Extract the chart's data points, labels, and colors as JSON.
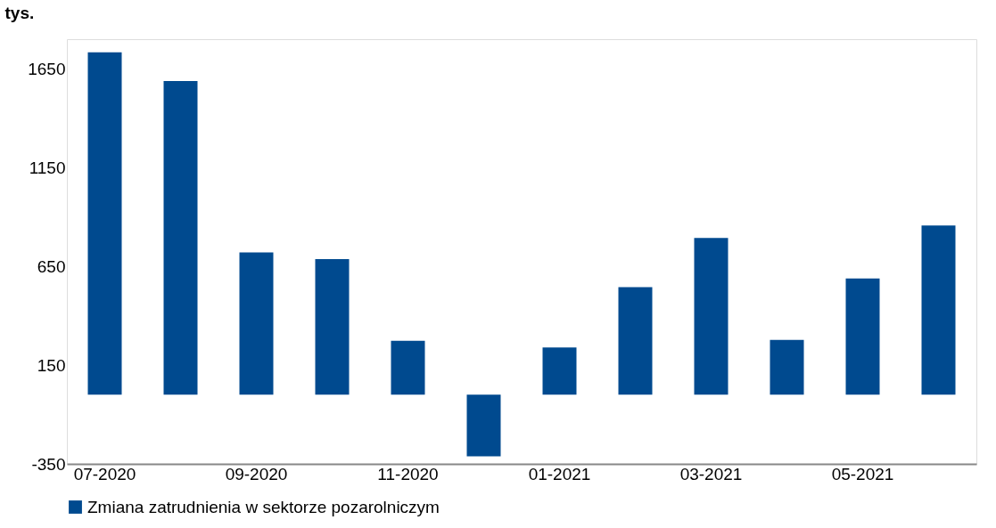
{
  "chart_data": {
    "type": "bar",
    "ylabel": "tys.",
    "categories": [
      "07-2020",
      null,
      "09-2020",
      null,
      "11-2020",
      null,
      "01-2021",
      null,
      "03-2021",
      null,
      "05-2021",
      null
    ],
    "series": [
      {
        "name": "Zmiana zatrudnienia w sektorze pozarolniczym",
        "color": "#004a8f",
        "values": [
          1734,
          1588,
          721,
          687,
          273,
          -312,
          239,
          545,
          794,
          278,
          589,
          857
        ]
      }
    ],
    "ylim": [
      -350,
      1800
    ],
    "yticks": [
      -350,
      150,
      650,
      1150,
      1650
    ],
    "grid": false,
    "legend": "bottom"
  }
}
